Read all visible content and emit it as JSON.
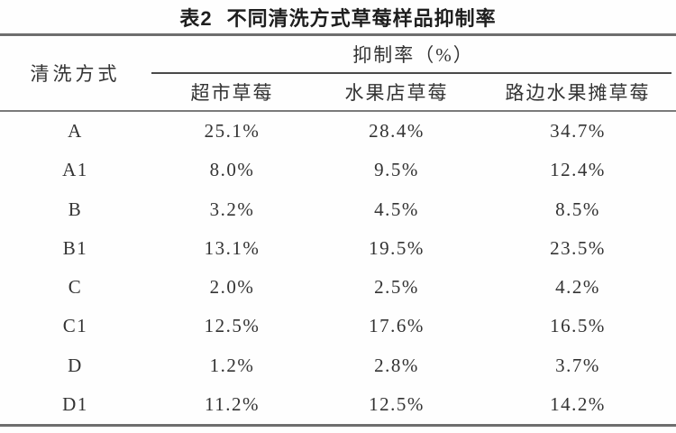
{
  "title": {
    "label": "表2",
    "text": "不同清洗方式草莓样品抑制率"
  },
  "table": {
    "col_method_header": "清洗方式",
    "group_header": "抑制率（%）",
    "sub_headers": [
      "超市草莓",
      "水果店草莓",
      "路边水果摊草莓"
    ],
    "rows": [
      {
        "method": "A",
        "values": [
          "25.1%",
          "28.4%",
          "34.7%"
        ]
      },
      {
        "method": "A1",
        "values": [
          "8.0%",
          "9.5%",
          "12.4%"
        ]
      },
      {
        "method": "B",
        "values": [
          "3.2%",
          "4.5%",
          "8.5%"
        ]
      },
      {
        "method": "B1",
        "values": [
          "13.1%",
          "19.5%",
          "23.5%"
        ]
      },
      {
        "method": "C",
        "values": [
          "2.0%",
          "2.5%",
          "4.2%"
        ]
      },
      {
        "method": "C1",
        "values": [
          "12.5%",
          "17.6%",
          "16.5%"
        ]
      },
      {
        "method": "D",
        "values": [
          "1.2%",
          "2.8%",
          "3.7%"
        ]
      },
      {
        "method": "D1",
        "values": [
          "11.2%",
          "12.5%",
          "14.2%"
        ]
      }
    ]
  },
  "colors": {
    "background": "#fefefe",
    "text": "#333333",
    "rule_heavy": "#6e6e6e",
    "rule_light": "#4a4a4a"
  }
}
